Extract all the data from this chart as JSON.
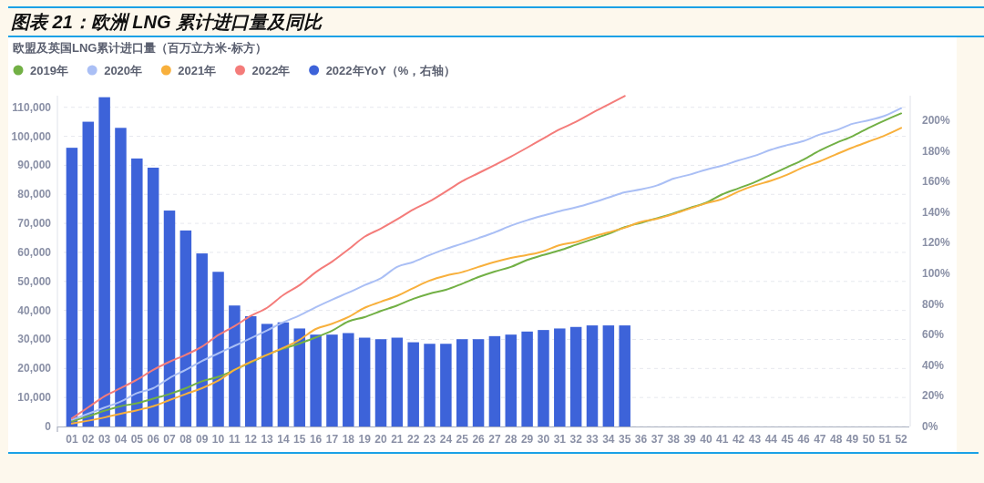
{
  "chart_data": {
    "type": "bar",
    "title": "图表 21：欧洲 LNG 累计进口量及同比",
    "subtitle": "欧盟及英国LNG累计进口量（百万立方米-标方）",
    "categories": [
      "01",
      "02",
      "03",
      "04",
      "05",
      "06",
      "07",
      "08",
      "09",
      "10",
      "11",
      "12",
      "13",
      "14",
      "15",
      "16",
      "17",
      "18",
      "19",
      "20",
      "21",
      "22",
      "23",
      "24",
      "25",
      "26",
      "27",
      "28",
      "29",
      "30",
      "31",
      "32",
      "33",
      "34",
      "35",
      "36",
      "37",
      "38",
      "39",
      "40",
      "41",
      "42",
      "43",
      "44",
      "45",
      "46",
      "47",
      "48",
      "49",
      "50",
      "51",
      "52"
    ],
    "series": [
      {
        "name": "2019年",
        "type": "line",
        "color": "#72b045",
        "values": [
          1800,
          3500,
          5400,
          7000,
          8000,
          9600,
          11200,
          13200,
          15600,
          17100,
          19500,
          22100,
          24700,
          26800,
          28600,
          30700,
          33000,
          36200,
          37700,
          39800,
          41700,
          44000,
          45800,
          47100,
          49200,
          51500,
          53400,
          55000,
          57400,
          59100,
          60700,
          62600,
          64500,
          66400,
          68700,
          70200,
          71800,
          73400,
          75300,
          77100,
          80000,
          82100,
          84200,
          86800,
          89400,
          92000,
          95100,
          97700,
          100000,
          102900,
          105500,
          107900
        ]
      },
      {
        "name": "2020年",
        "type": "line",
        "color": "#aabff5",
        "values": [
          2300,
          4400,
          6500,
          8600,
          11500,
          13200,
          16700,
          19500,
          22600,
          25200,
          27800,
          30400,
          33100,
          35900,
          38300,
          41100,
          43700,
          46100,
          48700,
          51100,
          55000,
          56700,
          59100,
          61200,
          63000,
          64900,
          66900,
          69200,
          71100,
          72700,
          74200,
          75500,
          77100,
          78900,
          80700,
          81700,
          83100,
          85400,
          86800,
          88500,
          89900,
          91700,
          93300,
          95400,
          97000,
          98400,
          100600,
          102100,
          104300,
          105500,
          107100,
          109700
        ]
      },
      {
        "name": "2021年",
        "type": "line",
        "color": "#f8b03c",
        "values": [
          1000,
          2000,
          3100,
          4400,
          5600,
          7000,
          9100,
          11200,
          13200,
          15800,
          19500,
          22300,
          24700,
          27100,
          29900,
          33600,
          35400,
          37700,
          40900,
          43000,
          45000,
          47700,
          50300,
          52000,
          53200,
          55000,
          56700,
          58100,
          59100,
          60400,
          62500,
          63600,
          65400,
          66900,
          68500,
          70500,
          71600,
          73200,
          75100,
          76900,
          78400,
          81000,
          83100,
          84700,
          86800,
          89400,
          91400,
          93800,
          96100,
          98200,
          100300,
          102900
        ]
      },
      {
        "name": "2022年",
        "type": "line",
        "color": "#f47c7a",
        "values": [
          2800,
          6600,
          10400,
          13200,
          16100,
          19500,
          22300,
          24700,
          27500,
          31500,
          34600,
          38100,
          40900,
          45300,
          48700,
          53200,
          56800,
          61000,
          65400,
          68200,
          71400,
          74800,
          77600,
          81000,
          84500,
          87300,
          90100,
          93000,
          96100,
          99300,
          102400,
          105000,
          108100,
          111000,
          113900,
          null,
          null,
          null,
          null,
          null,
          null,
          null,
          null,
          null,
          null,
          null,
          null,
          null,
          null,
          null,
          null,
          null
        ]
      },
      {
        "name": "2022年YoY（%，右轴）",
        "axis": "y2",
        "color": "#3d63d9",
        "values": [
          182,
          199,
          215,
          195,
          175,
          169,
          141,
          128,
          113,
          101,
          79,
          72,
          67,
          68,
          64,
          60,
          60,
          61,
          58,
          57,
          58,
          55,
          54,
          54,
          57,
          57,
          59,
          60,
          62,
          63,
          64,
          65,
          66,
          66,
          66,
          null,
          null,
          null,
          null,
          null,
          null,
          null,
          null,
          null,
          null,
          null,
          null,
          null,
          null,
          null,
          null,
          null
        ]
      }
    ],
    "ylim": [
      0,
      114000
    ],
    "yticks": [
      0,
      {
        "value": 10000,
        "label": "10,000"
      },
      {
        "value": 20000,
        "label": "20,000"
      },
      {
        "value": 30000,
        "label": "30,000"
      },
      {
        "value": 40000,
        "label": "40,000"
      },
      {
        "value": 50000,
        "label": "50,000"
      },
      {
        "value": 60000,
        "label": "60,000"
      },
      {
        "value": 70000,
        "label": "70,000"
      },
      {
        "value": 80000,
        "label": "80,000"
      },
      {
        "value": 90000,
        "label": "90,000"
      },
      {
        "value": 100000,
        "label": "100,000"
      },
      {
        "value": 110000,
        "label": "110,000"
      }
    ],
    "y2lim": [
      0,
      216
    ],
    "y2ticks": [
      {
        "value": 0,
        "label": "0%"
      },
      {
        "value": 20,
        "label": "20%"
      },
      {
        "value": 40,
        "label": "40%"
      },
      {
        "value": 60,
        "label": "60%"
      },
      {
        "value": 80,
        "label": "80%"
      },
      {
        "value": 100,
        "label": "100%"
      },
      {
        "value": 120,
        "label": "120%"
      },
      {
        "value": 140,
        "label": "140%"
      },
      {
        "value": 160,
        "label": "160%"
      },
      {
        "value": 180,
        "label": "180%"
      },
      {
        "value": 200,
        "label": "200%"
      }
    ],
    "grid": "y",
    "legend": "top left"
  }
}
